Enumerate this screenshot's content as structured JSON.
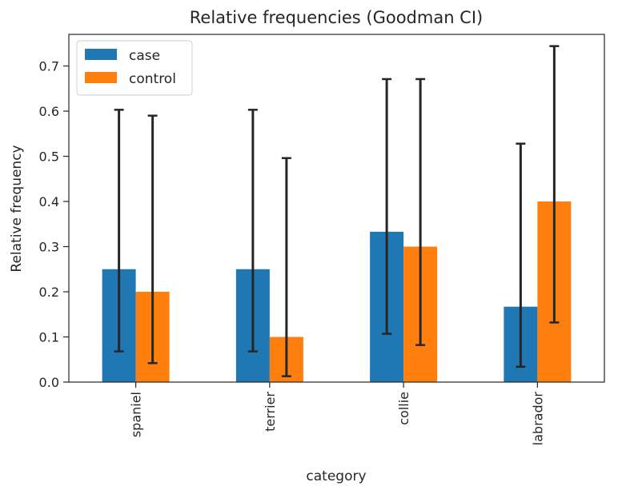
{
  "chart_data": {
    "type": "bar",
    "title": "Relative frequencies (Goodman CI)",
    "xlabel": "category",
    "ylabel": "Relative frequency",
    "categories": [
      "spaniel",
      "terrier",
      "collie",
      "labrador"
    ],
    "ylim": [
      0,
      0.77
    ],
    "yticks": [
      "0.0",
      "0.1",
      "0.2",
      "0.3",
      "0.4",
      "0.5",
      "0.6",
      "0.7"
    ],
    "grid": false,
    "legend_position": "top-left",
    "series": [
      {
        "name": "case",
        "color": "#1f77b4",
        "values": [
          0.25,
          0.25,
          0.333,
          0.167
        ],
        "ci_low": [
          0.068,
          0.068,
          0.107,
          0.034
        ],
        "ci_high": [
          0.603,
          0.603,
          0.671,
          0.528
        ]
      },
      {
        "name": "control",
        "color": "#ff7f0e",
        "values": [
          0.2,
          0.1,
          0.3,
          0.4
        ],
        "ci_low": [
          0.042,
          0.013,
          0.082,
          0.132
        ],
        "ci_high": [
          0.59,
          0.496,
          0.671,
          0.744
        ]
      }
    ]
  }
}
